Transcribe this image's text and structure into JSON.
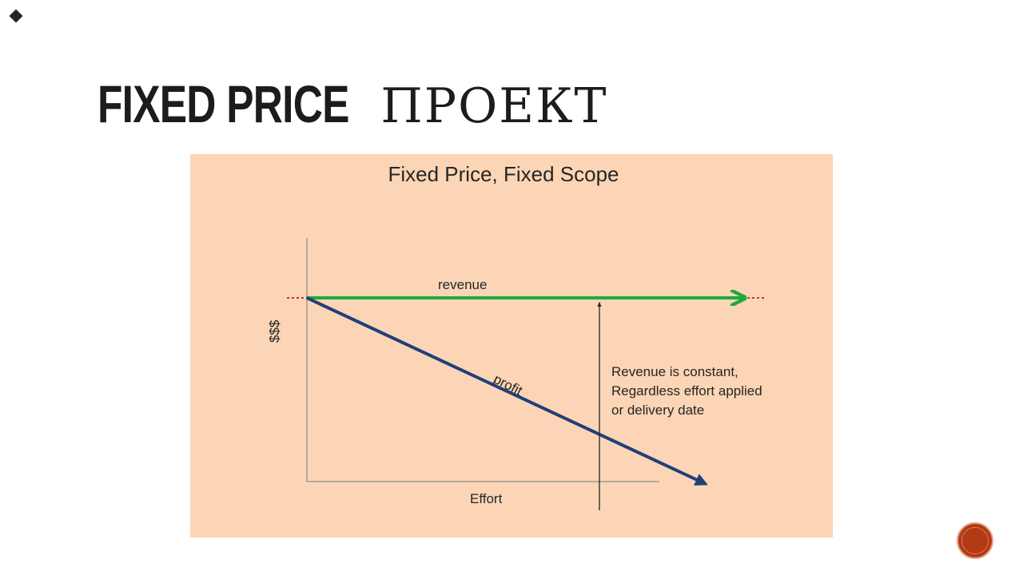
{
  "slide": {
    "title_en": "FIXED PRICE",
    "title_ru": "ПРОЕКТ"
  },
  "diagram": {
    "title": "Fixed Price, Fixed Scope",
    "revenue_label": "revenue",
    "profit_label": "profit",
    "y_axis_label": "$$$",
    "x_axis_label": "Effort",
    "note_lines": [
      "Revenue is constant,",
      "Regardless effort applied",
      "or delivery date"
    ],
    "colors": {
      "background": "#fbd5b5",
      "revenue": "#1faa3d",
      "profit": "#1f3f7a",
      "dotted": "#c0392b",
      "axis": "#8c8c8c"
    }
  },
  "navigation": {
    "icon": "slide-nav-circle-icon"
  }
}
